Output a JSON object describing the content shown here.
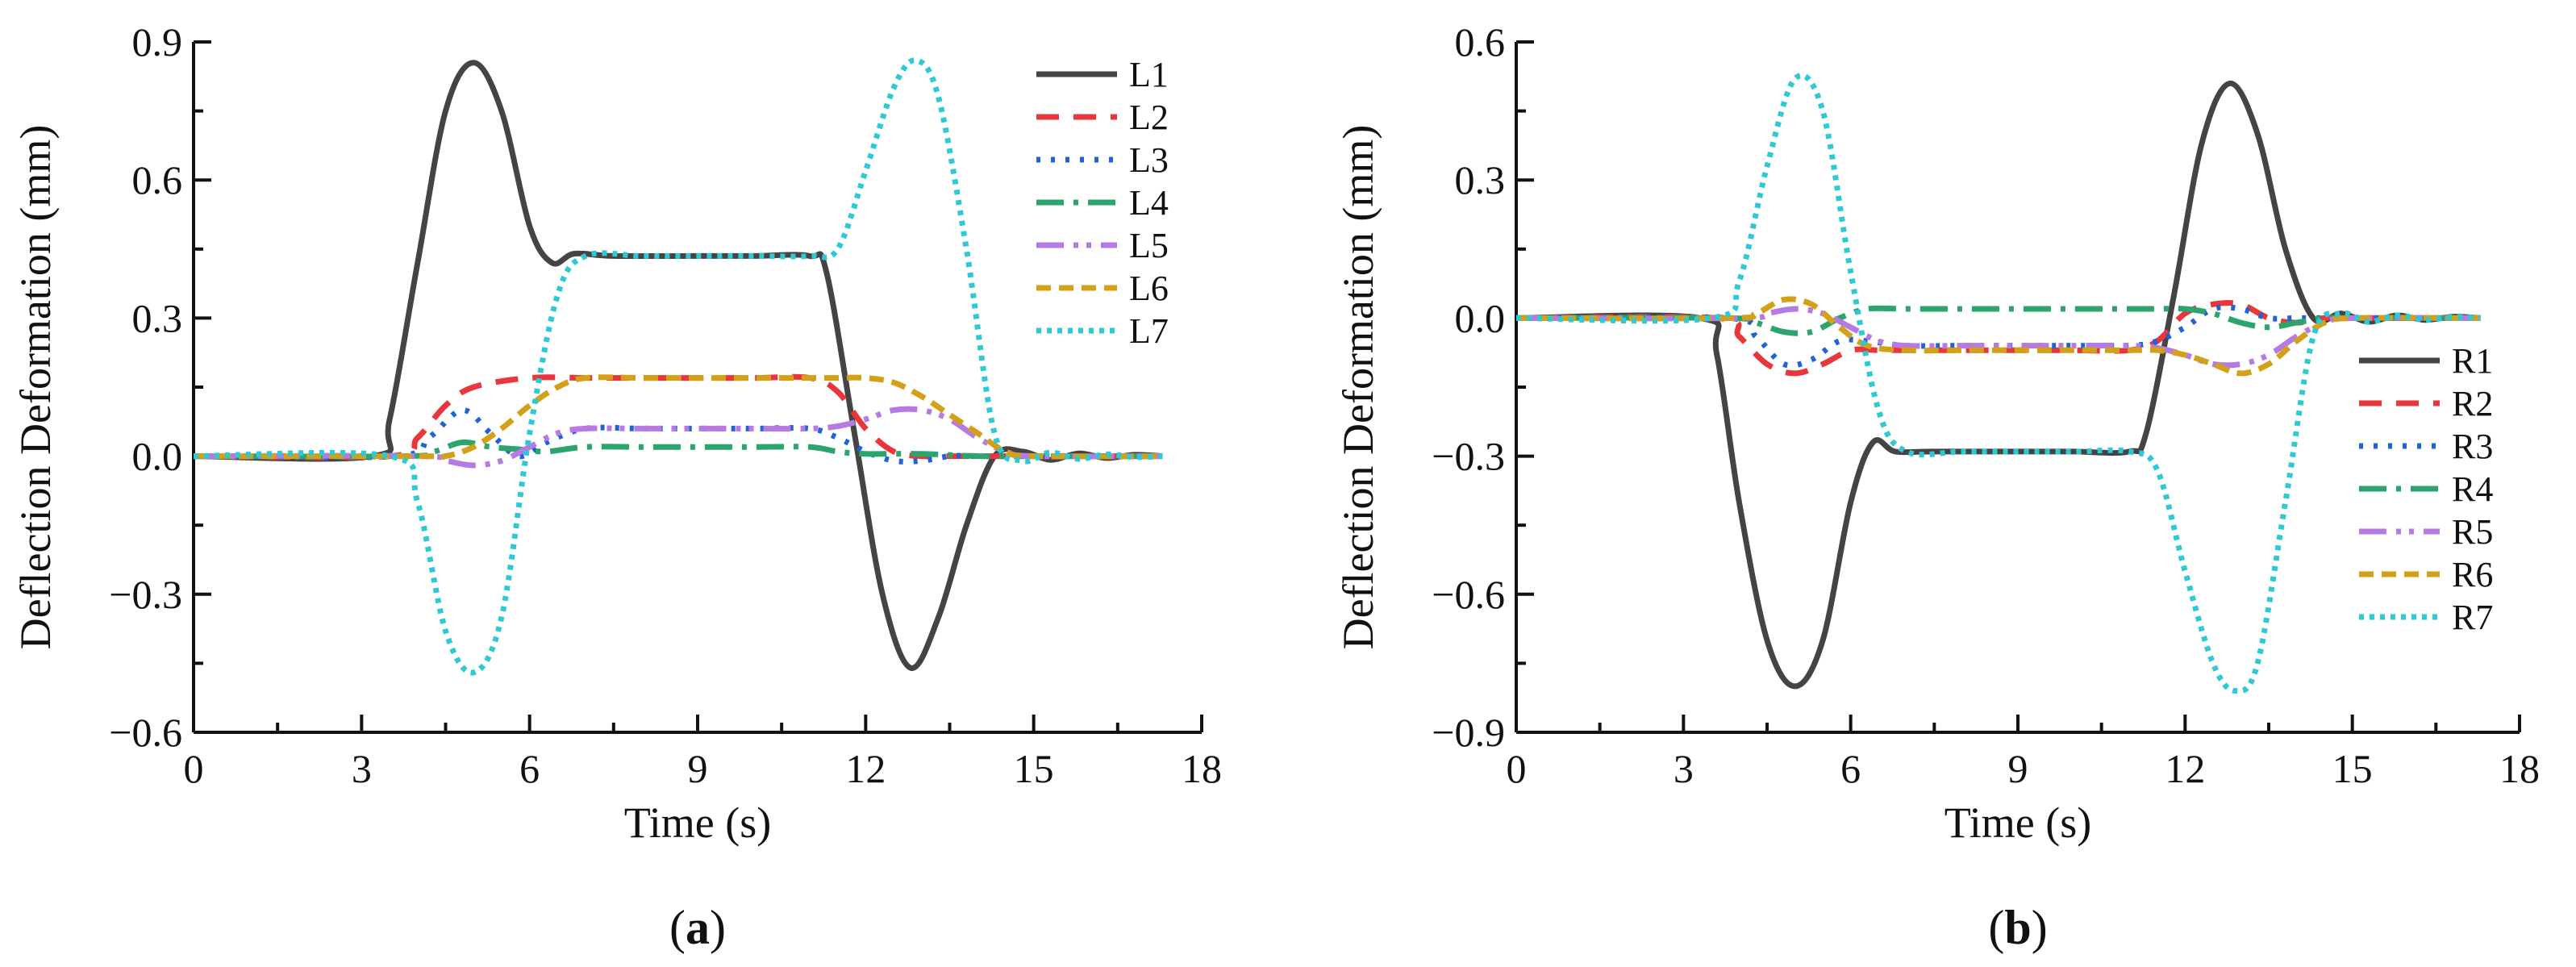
{
  "chart_data": [
    {
      "type": "line",
      "panel": "a",
      "panel_label": "(a)",
      "xlabel": "Time (s)",
      "ylabel": "Deflection Deformation (mm)",
      "xlim": [
        0,
        18
      ],
      "ylim": [
        -0.6,
        0.9
      ],
      "xticks": [
        0,
        3,
        6,
        9,
        12,
        15,
        18
      ],
      "yticks": [
        -0.6,
        -0.3,
        0.0,
        0.3,
        0.6,
        0.9
      ],
      "xtick_labels": [
        "0",
        "3",
        "6",
        "9",
        "12",
        "15",
        "18"
      ],
      "ytick_labels": [
        "−0.6",
        "−0.3",
        "0.0",
        "0.3",
        "0.6",
        "0.9"
      ],
      "legend_position": "top-right",
      "series": [
        {
          "name": "L1",
          "color": "#444444",
          "dash": "solid",
          "x": [
            0,
            3.2,
            3.5,
            4.0,
            4.5,
            5.0,
            5.5,
            6.0,
            6.4,
            6.8,
            7.5,
            9,
            10,
            11,
            11.3,
            11.8,
            12.3,
            12.8,
            13.3,
            13.8,
            14.3,
            14.8,
            15.3,
            15.8,
            16.3,
            16.8,
            17.3
          ],
          "y": [
            0,
            0,
            0.08,
            0.42,
            0.75,
            0.855,
            0.75,
            0.5,
            0.42,
            0.44,
            0.435,
            0.435,
            0.435,
            0.435,
            0.4,
            0.05,
            -0.3,
            -0.46,
            -0.35,
            -0.15,
            0.0,
            0.01,
            -0.008,
            0.006,
            -0.004,
            0.003,
            0
          ]
        },
        {
          "name": "L2",
          "color": "#e8363a",
          "dash": "28 18",
          "x": [
            0,
            3.5,
            4.0,
            4.5,
            5.0,
            6.0,
            7.0,
            8,
            9,
            10,
            11,
            11.5,
            12.0,
            12.5,
            13.0,
            13.5,
            14.0,
            15,
            16,
            17.3
          ],
          "y": [
            0,
            0,
            0.04,
            0.11,
            0.15,
            0.17,
            0.17,
            0.17,
            0.17,
            0.17,
            0.17,
            0.14,
            0.06,
            0.01,
            0.0,
            0.0,
            0.0,
            0.0,
            0.0,
            0
          ]
        },
        {
          "name": "L3",
          "color": "#1f63d6",
          "dash": "5 13",
          "x": [
            0,
            3.6,
            4.2,
            4.8,
            5.3,
            5.8,
            6.3,
            7.0,
            8,
            9,
            10,
            11,
            11.5,
            12.0,
            12.5,
            13.0,
            13.5,
            14.0,
            14.5,
            15,
            16,
            17.3
          ],
          "y": [
            0,
            0,
            0.04,
            0.1,
            0.05,
            0.0,
            0.03,
            0.06,
            0.06,
            0.06,
            0.06,
            0.06,
            0.04,
            0.01,
            -0.01,
            -0.01,
            0.0,
            0.0,
            0.0,
            0,
            0,
            0
          ]
        },
        {
          "name": "L4",
          "color": "#2ba56b",
          "dash": "34 12 6 12",
          "x": [
            0,
            3.8,
            4.3,
            4.8,
            5.3,
            5.8,
            6.3,
            7.0,
            8,
            9,
            10,
            11,
            11.5,
            12.0,
            13.0,
            14.0,
            15,
            17.3
          ],
          "y": [
            0,
            0,
            0.01,
            0.03,
            0.02,
            0.015,
            0.01,
            0.02,
            0.02,
            0.02,
            0.02,
            0.02,
            0.01,
            0.005,
            0.005,
            0.0,
            0,
            0
          ]
        },
        {
          "name": "L5",
          "color": "#b67be3",
          "dash": "34 12 6 10 6 12",
          "x": [
            0,
            4.0,
            4.5,
            5.0,
            5.5,
            6.0,
            6.5,
            7.0,
            8,
            9,
            10,
            11,
            11.5,
            12.0,
            12.5,
            13.0,
            13.5,
            14.0,
            14.5,
            15,
            17.3
          ],
          "y": [
            0,
            0,
            -0.01,
            -0.02,
            -0.01,
            0.02,
            0.05,
            0.06,
            0.06,
            0.06,
            0.06,
            0.06,
            0.065,
            0.08,
            0.1,
            0.1,
            0.08,
            0.04,
            0.01,
            0,
            0
          ]
        },
        {
          "name": "L6",
          "color": "#d4a017",
          "dash": "18 10",
          "x": [
            0,
            4.0,
            4.5,
            5.0,
            5.5,
            6.0,
            6.5,
            7.0,
            8,
            9,
            10,
            11,
            11.5,
            12.0,
            12.5,
            13.0,
            13.5,
            14.0,
            14.5,
            15,
            17.3
          ],
          "y": [
            0,
            0,
            0.0,
            0.02,
            0.06,
            0.11,
            0.15,
            0.17,
            0.17,
            0.17,
            0.17,
            0.17,
            0.17,
            0.17,
            0.16,
            0.13,
            0.09,
            0.05,
            0.01,
            0,
            0
          ]
        },
        {
          "name": "L7",
          "color": "#2ec9d4",
          "dash": "6 7",
          "x": [
            0,
            3.5,
            4.0,
            4.5,
            5.0,
            5.5,
            6.0,
            6.5,
            7.0,
            8,
            9,
            10,
            11,
            11.5,
            12.0,
            12.5,
            12.9,
            13.3,
            13.8,
            14.3,
            14.8,
            15.3,
            15.8,
            16.3,
            16.8,
            17.3
          ],
          "y": [
            0,
            0,
            -0.1,
            -0.38,
            -0.47,
            -0.35,
            0.05,
            0.35,
            0.435,
            0.435,
            0.435,
            0.435,
            0.435,
            0.45,
            0.62,
            0.8,
            0.86,
            0.78,
            0.45,
            0.05,
            -0.01,
            0.008,
            -0.006,
            0.004,
            -0.002,
            0
          ]
        }
      ]
    },
    {
      "type": "line",
      "panel": "b",
      "panel_label": "(b)",
      "xlabel": "Time (s)",
      "ylabel": "Deflection Deformation (mm)",
      "xlim": [
        0,
        18
      ],
      "ylim": [
        -0.9,
        0.6
      ],
      "xticks": [
        0,
        3,
        6,
        9,
        12,
        15,
        18
      ],
      "yticks": [
        -0.9,
        -0.6,
        -0.3,
        0.0,
        0.3,
        0.6
      ],
      "xtick_labels": [
        "0",
        "3",
        "6",
        "9",
        "12",
        "15",
        "18"
      ],
      "ytick_labels": [
        "−0.9",
        "−0.6",
        "−0.3",
        "0.0",
        "0.3",
        "0.6"
      ],
      "legend_position": "right",
      "series": [
        {
          "name": "R1",
          "color": "#444444",
          "dash": "solid",
          "x": [
            0,
            3.3,
            3.6,
            4.0,
            4.5,
            5.0,
            5.5,
            6.0,
            6.4,
            6.8,
            7.5,
            9,
            10,
            11,
            11.3,
            11.8,
            12.3,
            12.8,
            13.3,
            13.8,
            14.3,
            14.8,
            15.3,
            15.8,
            16.3,
            16.8,
            17.3
          ],
          "y": [
            0,
            0,
            -0.08,
            -0.4,
            -0.7,
            -0.8,
            -0.7,
            -0.4,
            -0.27,
            -0.29,
            -0.29,
            -0.29,
            -0.29,
            -0.29,
            -0.25,
            0.05,
            0.38,
            0.51,
            0.4,
            0.15,
            0.0,
            0.01,
            -0.008,
            0.006,
            -0.004,
            0.003,
            0
          ]
        },
        {
          "name": "R2",
          "color": "#e8363a",
          "dash": "28 18",
          "x": [
            0,
            3.6,
            4.0,
            4.5,
            5.0,
            5.5,
            6.0,
            6.5,
            7.0,
            8,
            9,
            10,
            11,
            11.5,
            12.0,
            12.5,
            13.0,
            13.5,
            14.0,
            14.5,
            15,
            17.3
          ],
          "y": [
            0,
            0,
            -0.04,
            -0.1,
            -0.12,
            -0.1,
            -0.07,
            -0.07,
            -0.07,
            -0.07,
            -0.07,
            -0.07,
            -0.07,
            -0.05,
            0.01,
            0.03,
            0.03,
            0.0,
            -0.01,
            0.0,
            0,
            0
          ]
        },
        {
          "name": "R3",
          "color": "#1f63d6",
          "dash": "5 13",
          "x": [
            0,
            3.8,
            4.3,
            4.8,
            5.3,
            5.8,
            6.3,
            7.0,
            8,
            9,
            10,
            11,
            11.5,
            12.0,
            12.5,
            13.0,
            13.5,
            14.0,
            14.5,
            15,
            17.3
          ],
          "y": [
            0,
            0,
            -0.04,
            -0.1,
            -0.09,
            -0.05,
            -0.05,
            -0.06,
            -0.06,
            -0.06,
            -0.06,
            -0.06,
            -0.05,
            -0.02,
            0.02,
            0.02,
            0.0,
            0.0,
            0.0,
            0,
            0
          ]
        },
        {
          "name": "R4",
          "color": "#2ba56b",
          "dash": "34 12 6 12",
          "x": [
            0,
            3.8,
            4.3,
            4.8,
            5.3,
            5.8,
            6.3,
            7.0,
            8,
            9,
            10,
            11,
            11.5,
            12.0,
            12.5,
            13.0,
            13.5,
            14.0,
            14.5,
            15,
            17.3
          ],
          "y": [
            0,
            0,
            -0.01,
            -0.03,
            -0.03,
            0.0,
            0.02,
            0.02,
            0.02,
            0.02,
            0.02,
            0.02,
            0.02,
            0.02,
            0.01,
            -0.01,
            -0.02,
            -0.01,
            0.0,
            0,
            0
          ]
        },
        {
          "name": "R5",
          "color": "#b67be3",
          "dash": "34 12 6 10 6 12",
          "x": [
            0,
            4.0,
            4.5,
            5.0,
            5.5,
            6.0,
            6.5,
            7.0,
            8,
            9,
            10,
            11,
            11.5,
            12.0,
            12.5,
            13.0,
            13.5,
            14.0,
            14.5,
            15,
            17.3
          ],
          "y": [
            0,
            0,
            0.01,
            0.02,
            0.01,
            -0.02,
            -0.05,
            -0.06,
            -0.06,
            -0.06,
            -0.06,
            -0.06,
            -0.065,
            -0.08,
            -0.1,
            -0.1,
            -0.08,
            -0.04,
            -0.01,
            0,
            0
          ]
        },
        {
          "name": "R6",
          "color": "#d4a017",
          "dash": "18 10",
          "x": [
            0,
            3.8,
            4.3,
            4.8,
            5.3,
            5.8,
            6.3,
            7.0,
            8,
            9,
            10,
            11,
            11.5,
            12.0,
            12.5,
            13.0,
            13.5,
            14.0,
            14.5,
            15,
            17.3
          ],
          "y": [
            0,
            0,
            0.01,
            0.04,
            0.03,
            -0.02,
            -0.06,
            -0.07,
            -0.07,
            -0.07,
            -0.07,
            -0.07,
            -0.07,
            -0.08,
            -0.1,
            -0.12,
            -0.1,
            -0.05,
            -0.01,
            0,
            0
          ]
        },
        {
          "name": "R7",
          "color": "#2ec9d4",
          "dash": "6 7",
          "x": [
            0,
            3.5,
            4.0,
            4.5,
            5.0,
            5.5,
            6.0,
            6.5,
            7.0,
            8,
            9,
            10,
            11,
            11.5,
            12.0,
            12.5,
            12.9,
            13.3,
            13.8,
            14.3,
            14.8,
            15.3,
            15.8,
            16.3,
            16.8,
            17.3
          ],
          "y": [
            0,
            0,
            0.08,
            0.33,
            0.52,
            0.45,
            0.1,
            -0.2,
            -0.29,
            -0.29,
            -0.29,
            -0.29,
            -0.29,
            -0.33,
            -0.55,
            -0.75,
            -0.81,
            -0.75,
            -0.4,
            -0.04,
            0.01,
            -0.008,
            0.006,
            -0.004,
            0.002,
            0
          ]
        }
      ]
    }
  ]
}
